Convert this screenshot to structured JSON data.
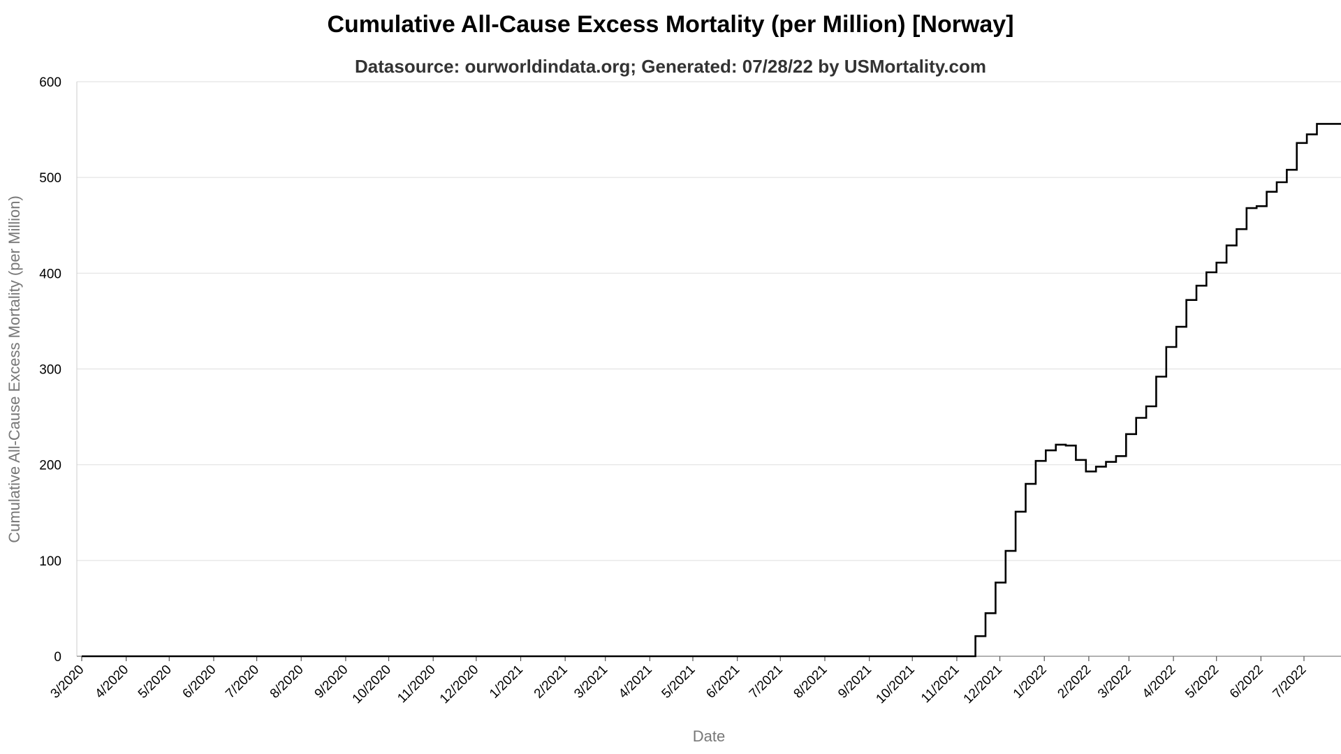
{
  "chart_data": {
    "type": "line",
    "title": "Cumulative All-Cause Excess Mortality (per Million) [Norway]",
    "subtitle": "Datasource: ourworldindata.org; Generated: 07/28/22 by USMortality.com",
    "xlabel": "Date",
    "ylabel": "Cumulative All-Cause Excess Mortality (per Million)",
    "ylim": [
      0,
      600
    ],
    "yticks": [
      0,
      100,
      200,
      300,
      400,
      500,
      600
    ],
    "xticks": [
      "3/2020",
      "4/2020",
      "5/2020",
      "6/2020",
      "7/2020",
      "8/2020",
      "9/2020",
      "10/2020",
      "11/2020",
      "12/2020",
      "1/2021",
      "2/2021",
      "3/2021",
      "4/2021",
      "5/2021",
      "6/2021",
      "7/2021",
      "8/2021",
      "9/2021",
      "10/2021",
      "11/2021",
      "12/2021",
      "1/2022",
      "2/2022",
      "3/2022",
      "4/2022",
      "5/2022",
      "6/2022",
      "7/2022"
    ],
    "grid": true,
    "step": true,
    "series": [
      {
        "color": "#000000",
        "x": [
          "2020-03-01",
          "2020-03-03",
          "2021-11-14",
          "2021-11-21",
          "2021-11-28",
          "2021-12-05",
          "2021-12-12",
          "2021-12-19",
          "2021-12-26",
          "2022-01-02",
          "2022-01-09",
          "2022-01-16",
          "2022-01-23",
          "2022-01-30",
          "2022-02-06",
          "2022-02-13",
          "2022-02-20",
          "2022-02-27",
          "2022-03-06",
          "2022-03-13",
          "2022-03-20",
          "2022-03-27",
          "2022-04-03",
          "2022-04-10",
          "2022-04-17",
          "2022-04-24",
          "2022-05-01",
          "2022-05-08",
          "2022-05-15",
          "2022-05-22",
          "2022-05-29",
          "2022-06-05",
          "2022-06-12",
          "2022-06-19",
          "2022-06-26",
          "2022-07-03",
          "2022-07-10",
          "2022-07-17",
          "2022-07-24"
        ],
        "y": [
          0,
          0,
          21,
          45,
          77,
          110,
          151,
          180,
          204,
          215,
          221,
          220,
          205,
          193,
          198,
          203,
          209,
          232,
          249,
          261,
          292,
          323,
          344,
          372,
          387,
          401,
          411,
          429,
          446,
          468,
          470,
          485,
          495,
          508,
          536,
          545,
          556,
          556,
          556
        ]
      }
    ]
  }
}
